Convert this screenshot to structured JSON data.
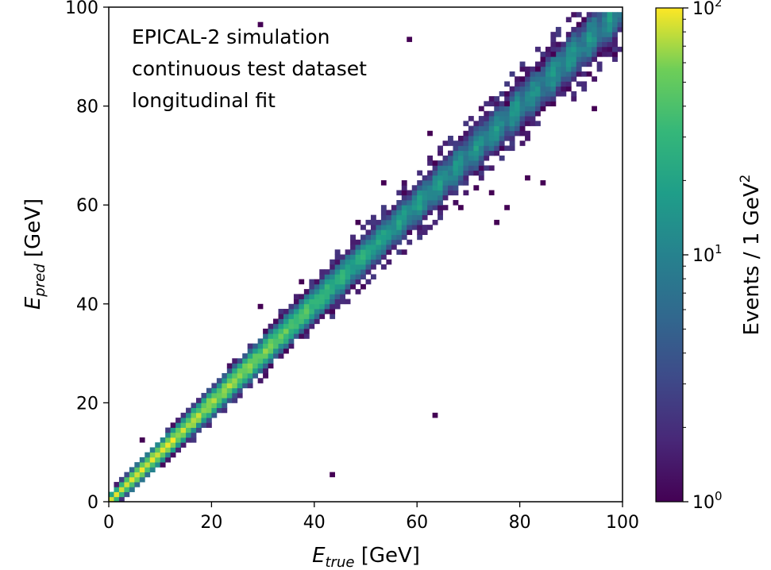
{
  "chart_data": {
    "type": "heatmap",
    "annotation": [
      "EPICAL-2 simulation",
      "continuous test dataset",
      "longitudinal fit"
    ],
    "xlabel": {
      "main": "E",
      "sub": "true",
      "unit": " [GeV]"
    },
    "ylabel": {
      "main": "E",
      "sub": "pred",
      "unit": " [GeV]"
    },
    "xlim": [
      0,
      100
    ],
    "ylim": [
      0,
      100
    ],
    "xticks": [
      0,
      20,
      40,
      60,
      80,
      100
    ],
    "yticks": [
      0,
      20,
      40,
      60,
      80,
      100
    ],
    "bin_width_gev": 1,
    "colormap": "viridis",
    "colorbar": {
      "label": "Events / 1 GeV",
      "label_sup": "2",
      "scale": "log",
      "range": [
        1,
        100
      ],
      "ticks": [
        {
          "value": 1,
          "base": "10",
          "exp": "0"
        },
        {
          "value": 10,
          "base": "10",
          "exp": "1"
        },
        {
          "value": 100,
          "base": "10",
          "exp": "2"
        }
      ]
    },
    "band": {
      "description": "diagonal band E_pred ≈ E_true",
      "resolution_sigma_gev": [
        0.6,
        0.9,
        1.0,
        1.2,
        1.4,
        1.6,
        1.8,
        2.0,
        2.2,
        2.4,
        2.6
      ],
      "resolution_at_x": [
        0,
        5,
        10,
        20,
        30,
        40,
        50,
        60,
        70,
        80,
        100
      ],
      "ceiling_y": 99
    },
    "outliers": [
      {
        "x": 29.5,
        "y": 96.5
      },
      {
        "x": 58.5,
        "y": 93.5
      },
      {
        "x": 29.5,
        "y": 39.5
      },
      {
        "x": 62.5,
        "y": 74.5
      },
      {
        "x": 63.5,
        "y": 17.5
      },
      {
        "x": 43.5,
        "y": 5.5
      },
      {
        "x": 68.5,
        "y": 59.5
      },
      {
        "x": 74.5,
        "y": 62.5
      },
      {
        "x": 75.5,
        "y": 56.5
      },
      {
        "x": 77.5,
        "y": 59.5
      },
      {
        "x": 81.5,
        "y": 65.5
      },
      {
        "x": 84.5,
        "y": 64.5
      },
      {
        "x": 94.5,
        "y": 79.5
      },
      {
        "x": 93.5,
        "y": 86.5
      },
      {
        "x": 83.5,
        "y": 87.5
      },
      {
        "x": 86.5,
        "y": 90.5
      },
      {
        "x": 77.5,
        "y": 80.5
      },
      {
        "x": 53.5,
        "y": 64.5
      },
      {
        "x": 37.5,
        "y": 44.5
      },
      {
        "x": 48.5,
        "y": 56.5
      },
      {
        "x": 6.5,
        "y": 12.5
      }
    ]
  }
}
